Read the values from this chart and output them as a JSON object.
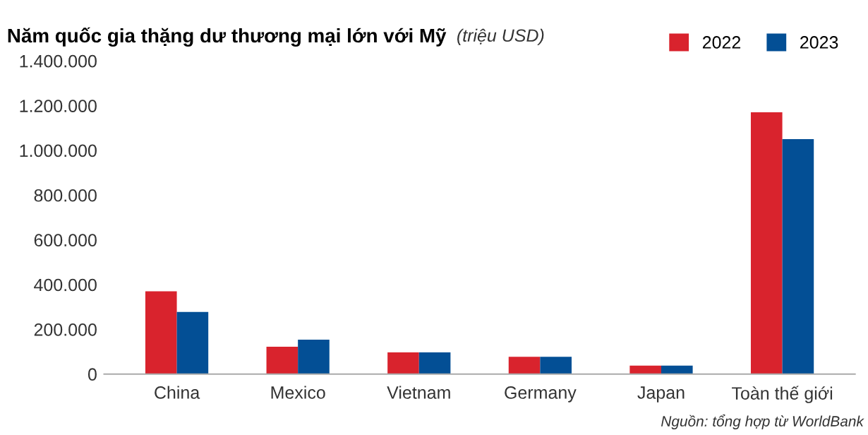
{
  "chart_data": {
    "type": "bar",
    "title": "Năm quốc gia thặng dư thương mại lớn với Mỹ",
    "subtitle": "(triệu USD)",
    "categories": [
      "China",
      "Mexico",
      "Vietnam",
      "Germany",
      "Japan",
      "Toàn thế giới"
    ],
    "series": [
      {
        "name": "2022",
        "color": "#d9232d",
        "values": [
          370000,
          122000,
          97000,
          77000,
          38000,
          1170000
        ]
      },
      {
        "name": "2023",
        "color": "#034f95",
        "values": [
          278000,
          154000,
          97000,
          77000,
          38000,
          1050000
        ]
      }
    ],
    "ylim": [
      0,
      1400000
    ],
    "yticks": [
      {
        "value": 0,
        "label": "0"
      },
      {
        "value": 200000,
        "label": "200.000"
      },
      {
        "value": 400000,
        "label": "400.000"
      },
      {
        "value": 600000,
        "label": "600.000"
      },
      {
        "value": 800000,
        "label": "800.000"
      },
      {
        "value": 1000000,
        "label": "1.000.000"
      },
      {
        "value": 1200000,
        "label": "1.200.000"
      },
      {
        "value": 1400000,
        "label": "1.400.000"
      }
    ],
    "grid": false,
    "legend": "top right",
    "annotations": [
      "Nguồn: tổng hợp từ WorldBank"
    ]
  }
}
